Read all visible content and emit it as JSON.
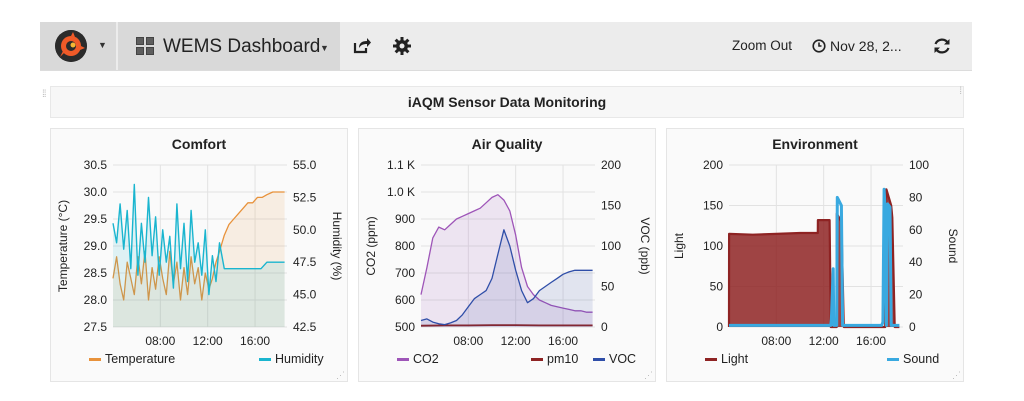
{
  "navbar": {
    "dashboard_title": "WEMS Dashboard",
    "zoom_out_label": "Zoom Out",
    "time_range_label": "Nov 28, 2..."
  },
  "row_title": "iAQM Sensor Data Monitoring",
  "colors": {
    "temperature": "#e8923b",
    "humidity": "#1ab5cf",
    "co2": "#9e55b8",
    "pm10": "#8e2323",
    "voc": "#2f4ea8",
    "light": "#8e2323",
    "sound": "#39a9e0",
    "brand": "#f05a28"
  },
  "panels": {
    "comfort": {
      "title": "Comfort",
      "legend": [
        "Temperature",
        "Humidity"
      ],
      "ylabel_left": "Temperature (°C)",
      "ylabel_right": "Humidity (%)",
      "yticks_left": [
        "30.5",
        "30.0",
        "29.5",
        "29.0",
        "28.5",
        "28.0",
        "27.5"
      ],
      "yticks_right": [
        "55.0",
        "52.5",
        "50.0",
        "47.5",
        "45.0",
        "42.5"
      ],
      "xticks": [
        "08:00",
        "12:00",
        "16:00"
      ]
    },
    "air_quality": {
      "title": "Air Quality",
      "legend": [
        "CO2",
        "pm10",
        "VOC"
      ],
      "ylabel_left": "CO2 (ppm)",
      "ylabel_right": "VOC (ppb)",
      "yticks_left": [
        "1.1 K",
        "1.0 K",
        "900",
        "800",
        "700",
        "600",
        "500"
      ],
      "yticks_right": [
        "200",
        "150",
        "100",
        "50",
        "0"
      ],
      "xticks": [
        "08:00",
        "12:00",
        "16:00"
      ]
    },
    "environment": {
      "title": "Environment",
      "legend": [
        "Light",
        "Sound"
      ],
      "ylabel_left": "Light",
      "ylabel_right": "Sound",
      "yticks_left": [
        "200",
        "150",
        "100",
        "50",
        "0"
      ],
      "yticks_right": [
        "100",
        "80",
        "60",
        "40",
        "20",
        "0"
      ],
      "xticks": [
        "08:00",
        "12:00",
        "16:00"
      ]
    }
  },
  "chart_data": [
    {
      "type": "line",
      "title": "Comfort",
      "xlabel": "",
      "ylabel": "Temperature (°C)",
      "y2label": "Humidity (%)",
      "xlim": [
        4.0,
        18.7
      ],
      "ylim": [
        27.5,
        30.5
      ],
      "y2lim": [
        42.5,
        55.0
      ],
      "series": [
        {
          "name": "Temperature",
          "axis": "left",
          "fill": true,
          "x": [
            4.0,
            4.3,
            4.6,
            4.9,
            5.2,
            5.5,
            5.8,
            6.1,
            6.4,
            6.7,
            7.0,
            7.3,
            7.6,
            7.9,
            8.2,
            8.5,
            8.8,
            9.1,
            9.4,
            9.7,
            10.0,
            10.3,
            10.6,
            10.9,
            11.2,
            11.5,
            11.8,
            12.1,
            12.4,
            12.7,
            13.0,
            13.4,
            13.8,
            14.2,
            14.6,
            15.0,
            15.4,
            15.8,
            16.2,
            16.6,
            17.0,
            17.5,
            18.0,
            18.5
          ],
          "y": [
            28.4,
            28.8,
            28.3,
            28.0,
            28.7,
            28.4,
            28.1,
            28.8,
            28.3,
            28.9,
            28.0,
            28.6,
            28.2,
            28.8,
            28.4,
            28.1,
            28.9,
            28.3,
            28.7,
            28.0,
            28.6,
            28.1,
            28.8,
            28.3,
            28.6,
            28.0,
            28.5,
            28.2,
            28.4,
            28.7,
            28.9,
            29.2,
            29.4,
            29.5,
            29.6,
            29.7,
            29.8,
            29.8,
            29.9,
            29.9,
            29.95,
            30.0,
            30.0,
            30.0
          ]
        },
        {
          "name": "Humidity",
          "axis": "right",
          "fill": true,
          "x": [
            4.0,
            4.3,
            4.6,
            4.9,
            5.2,
            5.5,
            5.8,
            6.1,
            6.4,
            6.7,
            7.0,
            7.3,
            7.6,
            7.9,
            8.2,
            8.5,
            8.8,
            9.1,
            9.4,
            9.7,
            10.0,
            10.3,
            10.6,
            10.9,
            11.2,
            11.5,
            11.8,
            12.1,
            12.4,
            12.7,
            13.0,
            13.4,
            14.0,
            15.0,
            16.0,
            16.5,
            17.0,
            17.5,
            18.0,
            18.5
          ],
          "y": [
            50.5,
            49.0,
            52.0,
            48.5,
            51.5,
            47.0,
            53.5,
            46.5,
            50.5,
            47.5,
            52.5,
            48.0,
            51.0,
            46.5,
            50.0,
            47.5,
            49.5,
            45.5,
            52.0,
            47.0,
            50.5,
            46.0,
            51.5,
            47.5,
            49.0,
            46.5,
            50.0,
            45.0,
            48.0,
            46.0,
            49.0,
            47.0,
            47.0,
            47.0,
            47.0,
            47.0,
            47.5,
            47.5,
            47.5,
            47.5
          ]
        }
      ]
    },
    {
      "type": "line",
      "title": "Air Quality",
      "xlabel": "",
      "ylabel": "CO2 (ppm)",
      "y2label": "VOC (ppb)",
      "xlim": [
        4.0,
        18.7
      ],
      "ylim": [
        500,
        1100
      ],
      "y2lim": [
        0,
        200
      ],
      "series": [
        {
          "name": "CO2",
          "axis": "left",
          "fill": true,
          "x": [
            4.0,
            4.5,
            5.0,
            5.5,
            6.0,
            6.5,
            7.0,
            7.5,
            8.0,
            8.5,
            9.0,
            9.5,
            10.0,
            10.5,
            11.0,
            11.5,
            12.0,
            12.5,
            13.0,
            13.5,
            14.0,
            14.5,
            15.0,
            15.5,
            16.0,
            16.5,
            17.0,
            17.5,
            18.0,
            18.5
          ],
          "y": [
            620,
            720,
            830,
            870,
            860,
            880,
            900,
            910,
            920,
            930,
            940,
            960,
            980,
            990,
            970,
            930,
            840,
            720,
            650,
            620,
            600,
            590,
            580,
            575,
            570,
            565,
            560,
            560,
            555,
            555
          ]
        },
        {
          "name": "pm10",
          "axis": "left",
          "fill": false,
          "x": [
            4.0,
            6.0,
            8.0,
            10.0,
            12.0,
            14.0,
            16.0,
            18.5
          ],
          "y": [
            505,
            506,
            506,
            507,
            507,
            506,
            506,
            506
          ]
        },
        {
          "name": "VOC",
          "axis": "right",
          "fill": true,
          "x": [
            4.0,
            4.5,
            5.0,
            5.5,
            6.0,
            6.5,
            7.0,
            7.5,
            8.0,
            8.5,
            9.0,
            9.5,
            10.0,
            10.5,
            11.0,
            11.5,
            12.0,
            12.5,
            13.0,
            13.5,
            14.0,
            14.5,
            15.0,
            15.5,
            16.0,
            16.5,
            17.0,
            17.5,
            18.0,
            18.5
          ],
          "y": [
            8,
            10,
            6,
            4,
            3,
            5,
            8,
            15,
            25,
            35,
            40,
            45,
            60,
            90,
            120,
            100,
            70,
            45,
            30,
            35,
            45,
            50,
            55,
            60,
            65,
            68,
            70,
            70,
            70,
            70
          ]
        }
      ]
    },
    {
      "type": "area",
      "title": "Environment",
      "xlabel": "",
      "ylabel": "Light",
      "y2label": "Sound",
      "xlim": [
        4.0,
        18.7
      ],
      "ylim": [
        0,
        200
      ],
      "y2lim": [
        0,
        100
      ],
      "series": [
        {
          "name": "Light",
          "axis": "left",
          "fill": true,
          "x": [
            4.0,
            4.01,
            6.0,
            8.0,
            10.0,
            11.5,
            11.51,
            12.5,
            12.6,
            13.1,
            13.11,
            13.5,
            13.7,
            13.71,
            17.0,
            17.2,
            17.3,
            17.7,
            17.8,
            18.0,
            18.4
          ],
          "y": [
            0,
            115,
            114,
            115,
            116,
            116,
            132,
            132,
            0,
            0,
            140,
            130,
            0,
            0,
            0,
            0,
            170,
            150,
            135,
            0,
            0
          ]
        },
        {
          "name": "Sound",
          "axis": "right",
          "fill": false,
          "x": [
            4.0,
            12.6,
            12.65,
            12.8,
            12.85,
            13.1,
            13.15,
            13.5,
            13.6,
            16.9,
            17.0,
            17.1,
            17.15,
            17.3,
            17.4,
            17.6,
            17.7,
            18.4
          ],
          "y": [
            1,
            1,
            5,
            36,
            1,
            1,
            80,
            75,
            1,
            1,
            3,
            85,
            78,
            1,
            76,
            74,
            1,
            1
          ]
        }
      ]
    }
  ]
}
